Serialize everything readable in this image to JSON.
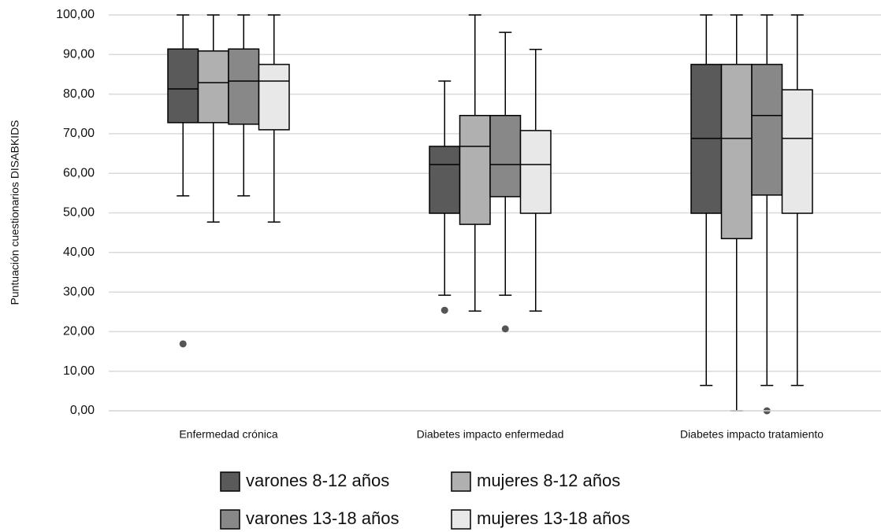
{
  "chart_data": {
    "type": "boxplot",
    "y_label": "Puntuación cuestionarios DISABKIDS",
    "categories": [
      "Enfermedad crónica",
      "Diabetes impacto enfermedad",
      "Diabetes impacto tratamiento"
    ],
    "ylim": [
      0,
      100
    ],
    "yticks": [
      {
        "value": 0,
        "label": "0,00"
      },
      {
        "value": 10,
        "label": "10,00"
      },
      {
        "value": 20,
        "label": "20,00"
      },
      {
        "value": 30,
        "label": "30,00"
      },
      {
        "value": 40,
        "label": "40,00"
      },
      {
        "value": 50,
        "label": "50,00"
      },
      {
        "value": 60,
        "label": "60,00"
      },
      {
        "value": 70,
        "label": "70,00"
      },
      {
        "value": 80,
        "label": "80,00"
      },
      {
        "value": 90,
        "label": "90,00"
      },
      {
        "value": 100,
        "label": "100,00"
      }
    ],
    "grid": true,
    "series": [
      {
        "name": "varones 8-12 años",
        "color": "#5a5a5a",
        "values": [
          {
            "min": 54.3,
            "q1": 72.8,
            "median": 81.3,
            "q3": 91.4,
            "max": 100,
            "outliers": [
              16.9
            ]
          },
          {
            "min": 29.2,
            "q1": 49.9,
            "median": 62.2,
            "q3": 66.8,
            "max": 83.3,
            "outliers": [
              25.4
            ]
          },
          {
            "min": 6.4,
            "q1": 49.9,
            "median": 68.8,
            "q3": 87.5,
            "max": 100,
            "outliers": []
          }
        ]
      },
      {
        "name": "mujeres 8-12 años",
        "color": "#b0b0b0",
        "values": [
          {
            "min": 47.7,
            "q1": 72.8,
            "median": 82.9,
            "q3": 90.9,
            "max": 100,
            "outliers": []
          },
          {
            "min": 25.2,
            "q1": 47.1,
            "median": 66.8,
            "q3": 74.6,
            "max": 100,
            "outliers": []
          },
          {
            "min": 0,
            "q1": 43.5,
            "median": 68.8,
            "q3": 87.5,
            "max": 100,
            "outliers": []
          }
        ]
      },
      {
        "name": "varones 13-18 años",
        "color": "#888888",
        "values": [
          {
            "min": 54.3,
            "q1": 72.4,
            "median": 83.3,
            "q3": 91.4,
            "max": 100,
            "outliers": []
          },
          {
            "min": 29.2,
            "q1": 54.1,
            "median": 62.2,
            "q3": 74.6,
            "max": 95.6,
            "outliers": [
              20.7
            ]
          },
          {
            "min": 6.4,
            "q1": 54.5,
            "median": 74.6,
            "q3": 87.5,
            "max": 100,
            "outliers": [
              0
            ]
          }
        ]
      },
      {
        "name": "mujeres 13-18 años",
        "color": "#e8e8e8",
        "values": [
          {
            "min": 47.7,
            "q1": 71.0,
            "median": 83.3,
            "q3": 87.5,
            "max": 100,
            "outliers": []
          },
          {
            "min": 25.2,
            "q1": 49.9,
            "median": 62.2,
            "q3": 70.8,
            "max": 91.3,
            "outliers": []
          },
          {
            "min": 6.4,
            "q1": 49.9,
            "median": 68.8,
            "q3": 81.1,
            "max": 100,
            "outliers": []
          }
        ]
      }
    ]
  }
}
